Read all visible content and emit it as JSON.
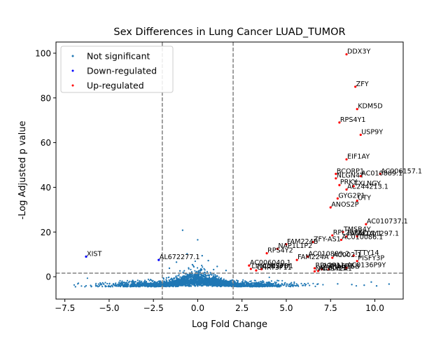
{
  "chart_data": {
    "type": "scatter",
    "title": "Sex Differences in Lung Cancer LUAD_TUMOR",
    "xlabel": "Log Fold Change",
    "ylabel": "-Log Adjusted p value",
    "xlim": [
      -8.0,
      11.6
    ],
    "ylim": [
      -10.0,
      105.0
    ],
    "xticks": [
      -7.5,
      -5.0,
      -2.5,
      0.0,
      2.5,
      5.0,
      7.5,
      10.0
    ],
    "xtick_labels": [
      "−7.5",
      "−5.0",
      "−2.5",
      "0.0",
      "2.5",
      "5.0",
      "7.5",
      "10.0"
    ],
    "yticks": [
      0,
      20,
      40,
      60,
      80,
      100
    ],
    "ytick_labels": [
      "0",
      "20",
      "40",
      "60",
      "80",
      "100"
    ],
    "thresholds": {
      "fc_low": -2.0,
      "fc_high": 2.0,
      "neglog_p": 1.6
    },
    "legend_position": "upper-left",
    "grid": false,
    "colors": {
      "not_significant": "#1f77b4",
      "down": "#0000ff",
      "up": "#ff0000",
      "threshold_line": "#808080"
    },
    "series": [
      {
        "name": "Not significant",
        "key": "ns"
      },
      {
        "name": "Down-regulated",
        "key": "down"
      },
      {
        "name": "Up-regulated",
        "key": "up"
      }
    ],
    "ns_scattered_points": [
      [
        -0.85,
        20.8
      ],
      [
        0.0,
        16.5
      ],
      [
        -0.6,
        10.2
      ],
      [
        0.25,
        9.4
      ],
      [
        -1.2,
        6.5
      ],
      [
        0.6,
        7.2
      ],
      [
        -0.3,
        5.4
      ],
      [
        1.1,
        4.6
      ],
      [
        -1.6,
        3.8
      ],
      [
        0.9,
        3.2
      ],
      [
        -1.0,
        2.6
      ],
      [
        1.6,
        2.8
      ],
      [
        -6.9,
        -4.5
      ],
      [
        -6.0,
        -4.3
      ],
      [
        -5.2,
        -4.4
      ],
      [
        -4.4,
        -4.1
      ],
      [
        -3.6,
        -3.8
      ],
      [
        -2.9,
        -3.5
      ],
      [
        7.9,
        -3.2
      ],
      [
        8.7,
        -3.5
      ],
      [
        9.4,
        -3.8
      ],
      [
        10.1,
        -4.1
      ],
      [
        10.8,
        -3.3
      ],
      [
        9.8,
        -2.4
      ]
    ],
    "down_points": [
      {
        "label": "XIST",
        "x": -6.3,
        "y": 9.0
      },
      {
        "label": "AL672277.1",
        "x": -2.2,
        "y": 7.5
      }
    ],
    "up_points": [
      {
        "label": "DDX3Y",
        "x": 8.4,
        "y": 99.5
      },
      {
        "label": "ZFY",
        "x": 8.9,
        "y": 85.0
      },
      {
        "label": "KDM5D",
        "x": 9.0,
        "y": 75.0
      },
      {
        "label": "RPS4Y1",
        "x": 8.0,
        "y": 69.0
      },
      {
        "label": "USP9Y",
        "x": 9.2,
        "y": 63.5
      },
      {
        "label": "EIF1AY",
        "x": 8.4,
        "y": 52.5
      },
      {
        "label": "AC006157.1",
        "x": 10.3,
        "y": 46.0
      },
      {
        "label": "BCORP1",
        "x": 7.8,
        "y": 46.0
      },
      {
        "label": "AC010889.1",
        "x": 9.2,
        "y": 45.0
      },
      {
        "label": "NLGN4Y",
        "x": 7.8,
        "y": 44.0
      },
      {
        "label": "PRKY",
        "x": 8.0,
        "y": 41.0
      },
      {
        "label": "TXLNGY",
        "x": 8.8,
        "y": 40.5
      },
      {
        "label": "AC244213.1",
        "x": 8.4,
        "y": 39.0
      },
      {
        "label": "GYG2P1",
        "x": 7.9,
        "y": 35.0
      },
      {
        "label": "UTY",
        "x": 9.0,
        "y": 34.0
      },
      {
        "label": "ANOS2P",
        "x": 7.5,
        "y": 31.0
      },
      {
        "label": "AC010737.1",
        "x": 9.5,
        "y": 23.5
      },
      {
        "label": "TMSB4Y",
        "x": 8.2,
        "y": 20.0
      },
      {
        "label": "RPL26P37",
        "x": 7.6,
        "y": 18.5
      },
      {
        "label": "FAM41AY1",
        "x": 8.4,
        "y": 18.0
      },
      {
        "label": "AC011297.1",
        "x": 9.0,
        "y": 18.0
      },
      {
        "label": "AC010086.1",
        "x": 8.1,
        "y": 16.5
      },
      {
        "label": "ZFY-AS1",
        "x": 6.5,
        "y": 15.5
      },
      {
        "label": "FAM224B",
        "x": 5.0,
        "y": 14.5
      },
      {
        "label": "NAP1L1P2",
        "x": 4.5,
        "y": 12.5
      },
      {
        "label": "RPS4Y2",
        "x": 3.9,
        "y": 10.5
      },
      {
        "label": "TTTY14",
        "x": 8.8,
        "y": 9.5
      },
      {
        "label": "AC010889.2",
        "x": 6.2,
        "y": 9.0
      },
      {
        "label": "AC002.1",
        "x": 7.6,
        "y": 8.5
      },
      {
        "label": "FAM224A",
        "x": 5.6,
        "y": 7.5
      },
      {
        "label": "PISFY3P",
        "x": 9.0,
        "y": 7.0
      },
      {
        "label": "AC006040.1",
        "x": 2.9,
        "y": 5.0
      },
      {
        "label": "AC0136P9Y",
        "x": 8.4,
        "y": 4.0
      },
      {
        "label": "RPL3P11",
        "x": 6.6,
        "y": 3.8
      },
      {
        "label": "LINC00278",
        "x": 3.0,
        "y": 3.5
      },
      {
        "label": "ALNSPD1",
        "x": 3.6,
        "y": 3.4
      },
      {
        "label": "PSMA6P1",
        "x": 7.0,
        "y": 3.4
      },
      {
        "label": "CYorf15B",
        "x": 7.4,
        "y": 3.3
      },
      {
        "label": "CHRT3P11",
        "x": 3.3,
        "y": 2.8
      },
      {
        "label": "AC008.1",
        "x": 6.8,
        "y": 2.6
      },
      {
        "label": "NNGSY2A1",
        "x": 6.6,
        "y": 2.4
      }
    ]
  }
}
